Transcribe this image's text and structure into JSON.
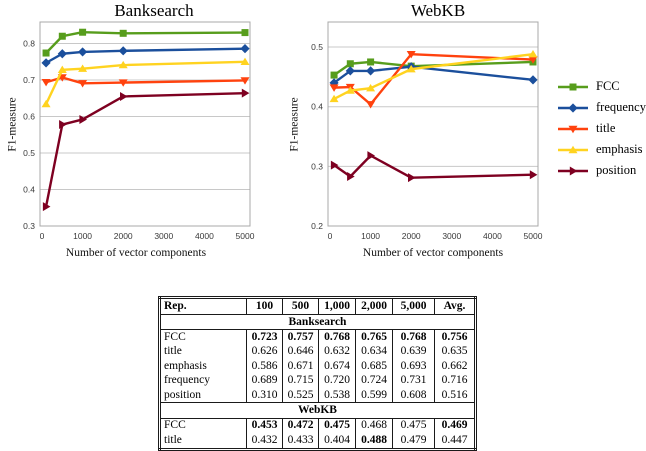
{
  "chart_data": [
    {
      "type": "line",
      "title": "Banksearch",
      "xlabel": "Number of vector components",
      "ylabel": "F1-measure",
      "x": [
        100,
        500,
        1000,
        2000,
        5000
      ],
      "x_ticks": [
        0,
        1000,
        2000,
        3000,
        4000,
        5000
      ],
      "xlim": [
        0,
        5000
      ],
      "ylim": [
        0.3,
        0.859
      ],
      "y_ticks": [
        0.3,
        0.4,
        0.5,
        0.6,
        0.7,
        0.8
      ],
      "grid": "horizontal",
      "series": [
        {
          "name": "FCC",
          "color": "#579D1C",
          "marker": "square",
          "values": [
            0.774,
            0.82,
            0.831,
            0.828,
            0.83
          ]
        },
        {
          "name": "frequency",
          "color": "#1B4F9C",
          "marker": "diamond",
          "values": [
            0.747,
            0.772,
            0.777,
            0.78,
            0.786
          ]
        },
        {
          "name": "title",
          "color": "#FF420E",
          "marker": "triangle-down",
          "values": [
            0.694,
            0.707,
            0.691,
            0.693,
            0.699
          ]
        },
        {
          "name": "emphasis",
          "color": "#FFD320",
          "marker": "triangle-up",
          "values": [
            0.634,
            0.728,
            0.731,
            0.741,
            0.75
          ]
        },
        {
          "name": "position",
          "color": "#7E0021",
          "marker": "triangle-right",
          "values": [
            0.353,
            0.578,
            0.592,
            0.655,
            0.664
          ]
        }
      ]
    },
    {
      "type": "line",
      "title": "WebKB",
      "xlabel": "Number of vector components",
      "ylabel": "F1-measure",
      "x": [
        100,
        500,
        1000,
        2000,
        5000
      ],
      "x_ticks": [
        0,
        1000,
        2000,
        3000,
        4000,
        5000
      ],
      "xlim": [
        0,
        5000
      ],
      "ylim": [
        0.2,
        0.542
      ],
      "y_ticks": [
        0.2,
        0.3,
        0.4,
        0.5
      ],
      "grid": "horizontal",
      "series": [
        {
          "name": "FCC",
          "color": "#579D1C",
          "marker": "square",
          "values": [
            0.453,
            0.472,
            0.475,
            0.468,
            0.475
          ]
        },
        {
          "name": "frequency",
          "color": "#1B4F9C",
          "marker": "diamond",
          "values": [
            0.44,
            0.46,
            0.46,
            0.467,
            0.445
          ]
        },
        {
          "name": "title",
          "color": "#FF420E",
          "marker": "triangle-down",
          "values": [
            0.432,
            0.433,
            0.404,
            0.488,
            0.479
          ]
        },
        {
          "name": "emphasis",
          "color": "#FFD320",
          "marker": "triangle-up",
          "values": [
            0.413,
            0.427,
            0.431,
            0.463,
            0.488
          ]
        },
        {
          "name": "position",
          "color": "#7E0021",
          "marker": "triangle-right",
          "values": [
            0.302,
            0.283,
            0.318,
            0.281,
            0.286
          ]
        }
      ]
    }
  ],
  "legend": {
    "position": "right-of-webkb-chart"
  },
  "table": {
    "header": [
      "Rep.",
      "100",
      "500",
      "1,000",
      "2,000",
      "5,000",
      "Avg."
    ],
    "sections": [
      {
        "title": "Banksearch",
        "rows": [
          {
            "label": "FCC",
            "values": [
              "0.723",
              "0.757",
              "0.768",
              "0.765",
              "0.768",
              "0.756"
            ],
            "bold": [
              1,
              1,
              1,
              1,
              1,
              1
            ]
          },
          {
            "label": "title",
            "values": [
              "0.626",
              "0.646",
              "0.632",
              "0.634",
              "0.639",
              "0.635"
            ],
            "bold": [
              0,
              0,
              0,
              0,
              0,
              0
            ]
          },
          {
            "label": "emphasis",
            "values": [
              "0.586",
              "0.671",
              "0.674",
              "0.685",
              "0.693",
              "0.662"
            ],
            "bold": [
              0,
              0,
              0,
              0,
              0,
              0
            ]
          },
          {
            "label": "frequency",
            "values": [
              "0.689",
              "0.715",
              "0.720",
              "0.724",
              "0.731",
              "0.716"
            ],
            "bold": [
              0,
              0,
              0,
              0,
              0,
              0
            ]
          },
          {
            "label": "position",
            "values": [
              "0.310",
              "0.525",
              "0.538",
              "0.599",
              "0.608",
              "0.516"
            ],
            "bold": [
              0,
              0,
              0,
              0,
              0,
              0
            ]
          }
        ]
      },
      {
        "title": "WebKB",
        "rows": [
          {
            "label": "FCC",
            "values": [
              "0.453",
              "0.472",
              "0.475",
              "0.468",
              "0.475",
              "0.469"
            ],
            "bold": [
              1,
              1,
              1,
              0,
              0,
              1
            ]
          },
          {
            "label": "title",
            "values": [
              "0.432",
              "0.433",
              "0.404",
              "0.488",
              "0.479",
              "0.447"
            ],
            "bold": [
              0,
              0,
              0,
              1,
              0,
              0
            ]
          }
        ]
      }
    ]
  },
  "style_colors": {
    "grid": "#C8C8C8",
    "plot_border": "#A8A8A8",
    "tick_text": "#3A3A3A"
  }
}
